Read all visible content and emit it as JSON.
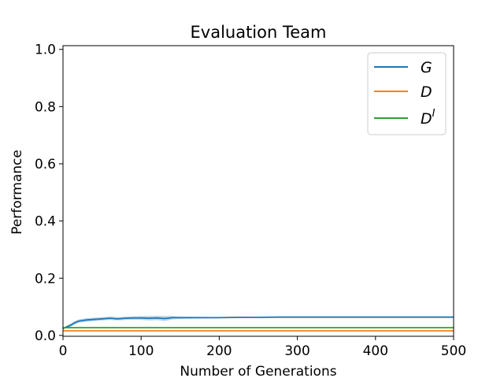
{
  "chart_data": {
    "type": "line",
    "title": "Evaluation Team",
    "xlabel": "Number of Generations",
    "ylabel": "Performance",
    "xlim": [
      0,
      500
    ],
    "ylim": [
      0.0,
      1.0
    ],
    "xticks": [
      0,
      100,
      200,
      300,
      400,
      500
    ],
    "xtick_labels": [
      "0",
      "100",
      "200",
      "300",
      "400",
      "500"
    ],
    "yticks": [
      0.0,
      0.2,
      0.4,
      0.6,
      0.8,
      1.0
    ],
    "ytick_labels": [
      "0.0",
      "0.2",
      "0.4",
      "0.6",
      "0.8",
      "1.0"
    ],
    "grid": false,
    "legend_position": "top-right",
    "series": [
      {
        "name": "G",
        "color": "#1f77b4",
        "x": [
          0,
          5,
          10,
          15,
          20,
          25,
          30,
          35,
          40,
          50,
          60,
          70,
          80,
          90,
          100,
          110,
          120,
          130,
          140,
          150,
          175,
          200,
          225,
          250,
          275,
          300,
          350,
          400,
          450,
          500
        ],
        "y": [
          0.024,
          0.03,
          0.036,
          0.044,
          0.05,
          0.052,
          0.054,
          0.055,
          0.056,
          0.058,
          0.06,
          0.058,
          0.06,
          0.061,
          0.061,
          0.06,
          0.061,
          0.059,
          0.062,
          0.062,
          0.062,
          0.062,
          0.063,
          0.063,
          0.064,
          0.064,
          0.064,
          0.064,
          0.064,
          0.064
        ],
        "band_low": [
          0.022,
          0.026,
          0.03,
          0.038,
          0.044,
          0.046,
          0.048,
          0.049,
          0.05,
          0.052,
          0.054,
          0.052,
          0.054,
          0.055,
          0.054,
          0.052,
          0.053,
          0.05,
          0.056,
          0.058,
          0.059,
          0.06,
          0.061,
          0.062,
          0.063,
          0.063,
          0.063,
          0.063,
          0.063,
          0.063
        ],
        "band_high": [
          0.026,
          0.034,
          0.042,
          0.05,
          0.056,
          0.058,
          0.06,
          0.061,
          0.062,
          0.064,
          0.066,
          0.064,
          0.066,
          0.067,
          0.068,
          0.068,
          0.069,
          0.068,
          0.068,
          0.066,
          0.065,
          0.064,
          0.065,
          0.064,
          0.065,
          0.065,
          0.065,
          0.065,
          0.065,
          0.065
        ]
      },
      {
        "name": "D",
        "color": "#ff7f0e",
        "x": [
          0,
          500
        ],
        "y": [
          0.016,
          0.016
        ]
      },
      {
        "name": "D",
        "name_superscript": "I",
        "color": "#2ca02c",
        "x": [
          0,
          500
        ],
        "y": [
          0.027,
          0.027
        ]
      }
    ]
  }
}
